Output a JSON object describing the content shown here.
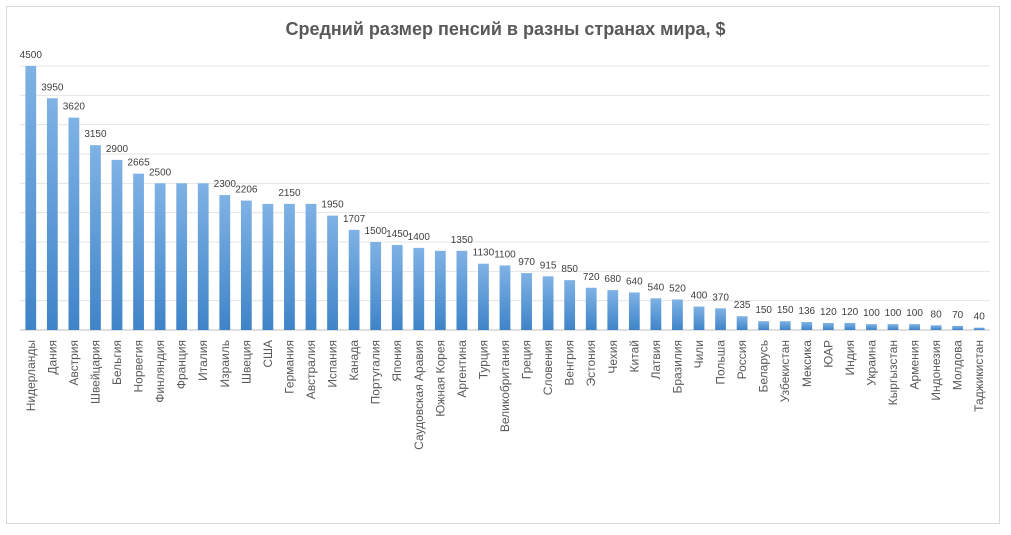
{
  "chart_data": {
    "type": "bar",
    "title": "Средний размер пенсий в разны странах мира, $",
    "xlabel": "",
    "ylabel": "",
    "ylim": [
      0,
      4500
    ],
    "grid": true,
    "bar_color": "#5b9bd5",
    "categories": [
      "Нидерланды",
      "Дания",
      "Австрия",
      "Швейцария",
      "Бельгия",
      "Норвегия",
      "Финляндия",
      "Франция",
      "Италия",
      "Израиль",
      "Швеция",
      "США",
      "Германия",
      "Австралия",
      "Испания",
      "Канада",
      "Португалия",
      "Япония",
      "Саудовская Аравия",
      "Южная Корея",
      "Аргентина",
      "Турция",
      "Великобритания",
      "Греция",
      "Словения",
      "Венгрия",
      "Эстония",
      "Чехия",
      "Китай",
      "Латвия",
      "Бразилия",
      "Чили",
      "Польша",
      "Россия",
      "Беларусь",
      "Узбекистан",
      "Мексика",
      "ЮАР",
      "Индия",
      "Украина",
      "Кыргызстан",
      "Армения",
      "Индонезия",
      "Молдова",
      "Таджикистан"
    ],
    "values": [
      4500,
      3950,
      3620,
      3150,
      2900,
      2665,
      2500,
      2500,
      2500,
      2300,
      2206,
      2150,
      2150,
      2150,
      1950,
      1707,
      1500,
      1450,
      1400,
      1350,
      1350,
      1130,
      1100,
      970,
      915,
      850,
      720,
      680,
      640,
      540,
      520,
      400,
      370,
      235,
      150,
      150,
      136,
      120,
      120,
      100,
      100,
      100,
      80,
      70,
      40
    ],
    "value_labels": [
      "4500",
      "3950",
      "3620",
      "3150",
      "2900",
      "2665",
      "2500",
      "",
      "",
      "2300",
      "2206",
      "",
      "2150",
      "",
      "1950",
      "1707",
      "1500",
      "1450",
      "1400",
      "",
      "1350",
      "1130",
      "1100",
      "970",
      "915",
      "850",
      "720",
      "680",
      "640",
      "540",
      "520",
      "400",
      "370",
      "235",
      "150",
      "150",
      "136",
      "120",
      "120",
      "100",
      "100",
      "100",
      "80",
      "70",
      "40"
    ]
  }
}
